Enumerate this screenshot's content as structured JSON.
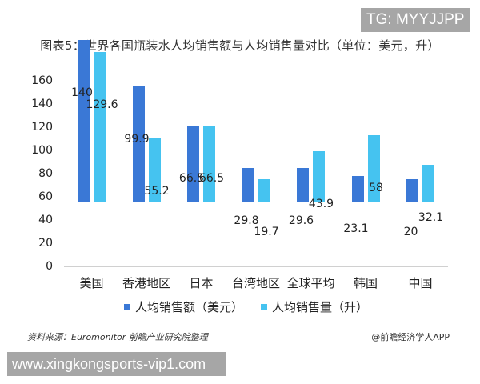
{
  "badge": {
    "text": "TG: MYYJJPP"
  },
  "title": "图表5：世界各国瓶装水人均销售额与人均销售量对比（单位：美元，升）",
  "colors": {
    "series0": "#3a78d6",
    "series1": "#45c3f0"
  },
  "chart_data": {
    "type": "bar",
    "title": "图表5：世界各国瓶装水人均销售额与人均销售量对比（单位：美元，升）",
    "categories": [
      "美国",
      "香港地区",
      "日本",
      "台湾地区",
      "全球平均",
      "韩国",
      "中国"
    ],
    "series": [
      {
        "name": "人均销售额（美元）",
        "values": [
          140,
          99.9,
          66.5,
          29.8,
          29.6,
          23.1,
          20
        ]
      },
      {
        "name": "人均销售量（升）",
        "values": [
          129.6,
          55.2,
          66.5,
          19.7,
          43.9,
          58,
          32.1
        ]
      }
    ],
    "value_labels": {
      "series0": [
        "140",
        "99.9",
        "66.5",
        "29.8",
        "29.6",
        "23.1",
        "20"
      ],
      "series1": [
        "129.6",
        "55.2",
        "66.5",
        "19.7",
        "43.9",
        "58",
        "32.1"
      ]
    },
    "xlabel": "",
    "ylabel": "",
    "ylim": [
      0,
      160
    ],
    "yticks": [
      "0",
      "20",
      "40",
      "60",
      "80",
      "100",
      "120",
      "140",
      "160"
    ],
    "grid": false,
    "legend_position": "bottom"
  },
  "legend": [
    {
      "label": "人均销售额（美元）"
    },
    {
      "label": "人均销售量（升）"
    }
  ],
  "footer": {
    "source": "资料来源：Euromonitor 前瞻产业研究院整理",
    "credit": "@前瞻经济学人APP"
  },
  "url_banner": {
    "text": "www.xingkongsports-vip1.com"
  }
}
